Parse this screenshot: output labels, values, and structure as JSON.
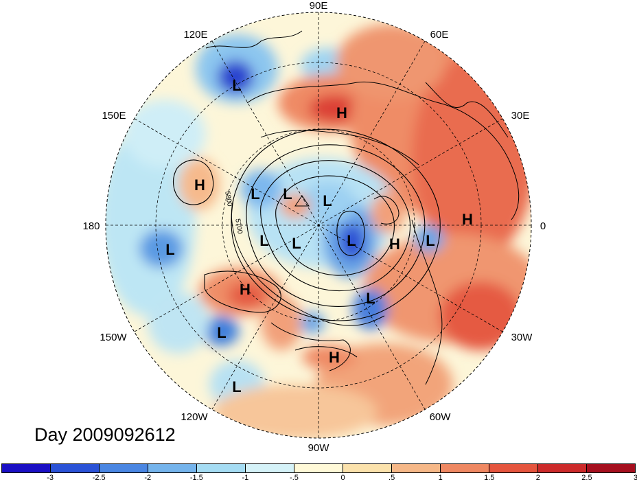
{
  "map": {
    "longitude_labels": [
      "90E",
      "60E",
      "30E",
      "0",
      "30W",
      "60W",
      "90W",
      "120W",
      "150W",
      "180",
      "150E",
      "120E"
    ],
    "contour_labels": [
      "5800",
      "5700"
    ],
    "highs_lows": [
      "H",
      "H",
      "L",
      "L",
      "L",
      "L",
      "L",
      "H",
      "L",
      "L",
      "L",
      "H",
      "H",
      "L",
      "L",
      "H",
      "L",
      "L"
    ],
    "date_label": "Day 2009092612"
  },
  "colorbar": {
    "tick_labels": [
      "-3",
      "-2.5",
      "-2",
      "-1.5",
      "-1",
      "-.5",
      "0",
      ".5",
      "1",
      "1.5",
      "2",
      "2.5",
      "3"
    ],
    "colors": [
      "#1a0fc4",
      "#2a52d6",
      "#4a86e2",
      "#75b4ec",
      "#a5dcf3",
      "#d5f2f8",
      "#fff9d8",
      "#fbe2ac",
      "#f6b888",
      "#ef8862",
      "#e5553e",
      "#cc2a2a",
      "#a50f1e"
    ]
  }
}
